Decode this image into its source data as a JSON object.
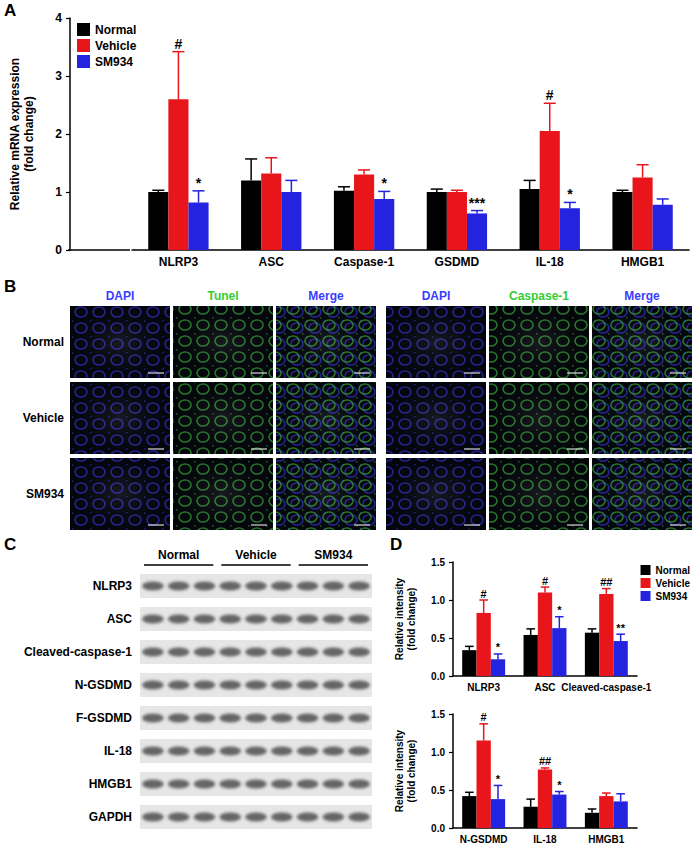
{
  "panel_b": {
    "panel": "B",
    "column_groups": [
      [
        "DAPI",
        "Tunel",
        "Merge"
      ],
      [
        "DAPI",
        "Caspase-1",
        "Merge"
      ]
    ],
    "rows": [
      "Normal",
      "Vehicle",
      "SM934"
    ]
  },
  "panel_c": {
    "panel": "C",
    "groups": [
      "Normal",
      "Vehicle",
      "SM934"
    ],
    "rows": [
      "NLRP3",
      "ASC",
      "Cleaved-caspase-1",
      "N-GSDMD",
      "F-GSDMD",
      "IL-18",
      "HMGB1",
      "GAPDH"
    ]
  },
  "chart_data": [
    {
      "type": "bar",
      "panel": "A",
      "ylabel": "Relative mRNA expression\n(fold change)",
      "categories": [
        "NLRP3",
        "ASC",
        "Caspase-1",
        "GSDMD",
        "IL-18",
        "HMGB1"
      ],
      "ylim": [
        0,
        4
      ],
      "yticks": [
        0,
        1,
        2,
        3,
        4
      ],
      "grid": false,
      "legend": "upper left",
      "series": [
        {
          "name": "Normal",
          "color": "#000000",
          "values": [
            1.0,
            1.2,
            1.02,
            1.0,
            1.05,
            1.0
          ],
          "errors": [
            0.03,
            0.37,
            0.07,
            0.05,
            0.15,
            0.03
          ]
        },
        {
          "name": "Vehicle",
          "color": "#e8161b",
          "values": [
            2.6,
            1.32,
            1.3,
            1.0,
            2.05,
            1.25
          ],
          "errors": [
            0.82,
            0.27,
            0.08,
            0.03,
            0.48,
            0.22
          ],
          "annotations": [
            "#",
            null,
            null,
            null,
            "#",
            null
          ]
        },
        {
          "name": "SM934",
          "color": "#2323e0",
          "values": [
            0.82,
            1.0,
            0.88,
            0.63,
            0.72,
            0.78
          ],
          "errors": [
            0.2,
            0.2,
            0.13,
            0.05,
            0.1,
            0.1
          ],
          "annotations": [
            "*",
            null,
            "*",
            "***",
            "*",
            null
          ]
        }
      ]
    },
    {
      "type": "bar",
      "panel": "D",
      "ylabel": "Relative intensity\n(fold change)",
      "categories": [
        "NLRP3",
        "ASC",
        "Cleaved-caspase-1"
      ],
      "ylim": [
        0,
        1.5
      ],
      "yticks": [
        {
          "value": 0,
          "label": "0.0"
        },
        {
          "value": 0.5,
          "label": "0.5"
        },
        {
          "value": 1,
          "label": "1.0"
        },
        {
          "value": 1.5,
          "label": "1.5"
        }
      ],
      "grid": false,
      "legend": "upper right",
      "series": [
        {
          "name": "Normal",
          "color": "#000000",
          "values": [
            0.34,
            0.54,
            0.57
          ],
          "errors": [
            0.05,
            0.08,
            0.05
          ]
        },
        {
          "name": "Vehicle",
          "color": "#e8161b",
          "values": [
            0.83,
            1.1,
            1.08
          ],
          "errors": [
            0.17,
            0.07,
            0.07
          ],
          "annotations": [
            "#",
            "#",
            "##"
          ]
        },
        {
          "name": "SM934",
          "color": "#2323e0",
          "values": [
            0.22,
            0.63,
            0.46
          ],
          "errors": [
            0.07,
            0.15,
            0.09
          ],
          "annotations": [
            "*",
            "*",
            "**"
          ]
        }
      ]
    },
    {
      "type": "bar",
      "ylabel": "Relative intensity\n(fold change)",
      "categories": [
        "N-GSDMD",
        "IL-18",
        "HMGB1"
      ],
      "ylim": [
        0,
        1.5
      ],
      "yticks": [
        {
          "value": 0,
          "label": "0.0"
        },
        {
          "value": 0.5,
          "label": "0.5"
        },
        {
          "value": 1,
          "label": "1.0"
        },
        {
          "value": 1.5,
          "label": "1.5"
        }
      ],
      "grid": false,
      "series": [
        {
          "name": "Normal",
          "color": "#000000",
          "values": [
            0.42,
            0.28,
            0.2
          ],
          "errors": [
            0.05,
            0.1,
            0.05
          ]
        },
        {
          "name": "Vehicle",
          "color": "#e8161b",
          "values": [
            1.15,
            0.77,
            0.42
          ],
          "errors": [
            0.22,
            0.02,
            0.04
          ],
          "annotations": [
            "#",
            "##",
            null
          ]
        },
        {
          "name": "SM934",
          "color": "#2323e0",
          "values": [
            0.38,
            0.44,
            0.35
          ],
          "errors": [
            0.18,
            0.04,
            0.1
          ],
          "annotations": [
            "*",
            "*",
            null
          ]
        }
      ]
    }
  ]
}
